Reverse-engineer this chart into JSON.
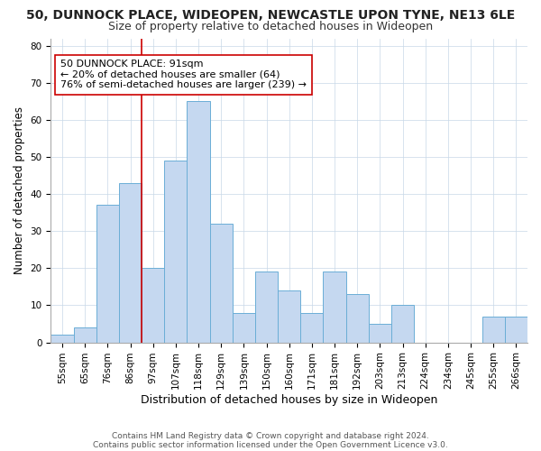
{
  "title": "50, DUNNOCK PLACE, WIDEOPEN, NEWCASTLE UPON TYNE, NE13 6LE",
  "subtitle": "Size of property relative to detached houses in Wideopen",
  "xlabel": "Distribution of detached houses by size in Wideopen",
  "ylabel": "Number of detached properties",
  "bar_labels": [
    "55sqm",
    "65sqm",
    "76sqm",
    "86sqm",
    "97sqm",
    "107sqm",
    "118sqm",
    "129sqm",
    "139sqm",
    "150sqm",
    "160sqm",
    "171sqm",
    "181sqm",
    "192sqm",
    "203sqm",
    "213sqm",
    "224sqm",
    "234sqm",
    "245sqm",
    "255sqm",
    "266sqm"
  ],
  "bar_values": [
    2,
    4,
    37,
    43,
    20,
    49,
    65,
    32,
    8,
    19,
    14,
    8,
    19,
    13,
    5,
    10,
    0,
    0,
    0,
    7,
    7
  ],
  "bar_color": "#c5d8f0",
  "bar_edge_color": "#6baed6",
  "vline_color": "#cc0000",
  "annotation_text": "50 DUNNOCK PLACE: 91sqm\n← 20% of detached houses are smaller (64)\n76% of semi-detached houses are larger (239) →",
  "annotation_box_color": "#ffffff",
  "annotation_box_edge": "#cc0000",
  "ylim": [
    0,
    82
  ],
  "yticks": [
    0,
    10,
    20,
    30,
    40,
    50,
    60,
    70,
    80
  ],
  "footnote1": "Contains HM Land Registry data © Crown copyright and database right 2024.",
  "footnote2": "Contains public sector information licensed under the Open Government Licence v3.0.",
  "title_fontsize": 10,
  "subtitle_fontsize": 9,
  "xlabel_fontsize": 9,
  "ylabel_fontsize": 8.5,
  "tick_fontsize": 7.5,
  "annotation_fontsize": 8,
  "footnote_fontsize": 6.5
}
